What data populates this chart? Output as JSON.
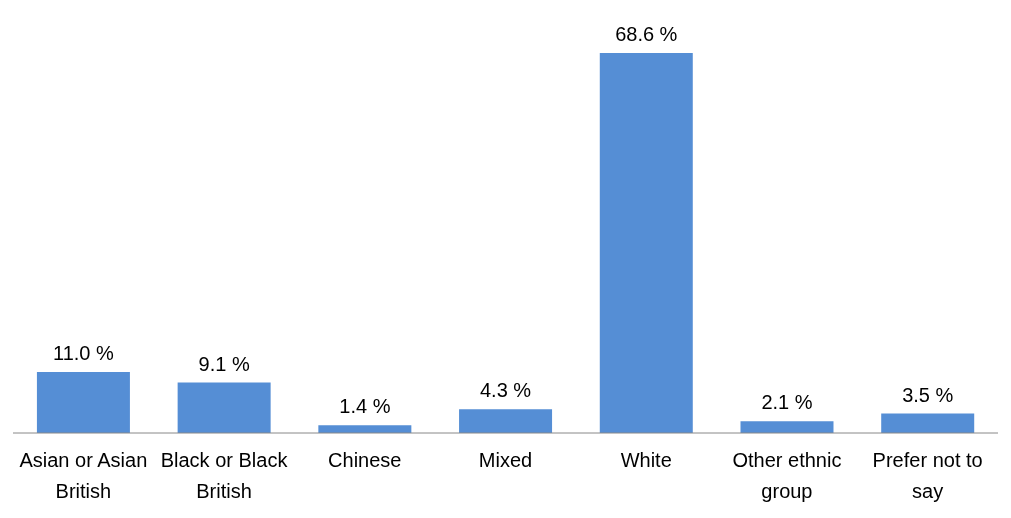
{
  "chart_data": {
    "type": "bar",
    "categories": [
      "Asian or Asian British",
      "Black or Black British",
      "Chinese",
      "Mixed",
      "White",
      "Other ethnic group",
      "Prefer not to say"
    ],
    "values": [
      11.0,
      9.1,
      1.4,
      4.3,
      68.6,
      2.1,
      3.5
    ],
    "value_labels": [
      "11.0 %",
      "9.1 %",
      "1.4 %",
      "4.3 %",
      "68.6 %",
      "2.1 %",
      "3.5 %"
    ],
    "color": "#558ed5",
    "grid": false,
    "legend": false
  }
}
